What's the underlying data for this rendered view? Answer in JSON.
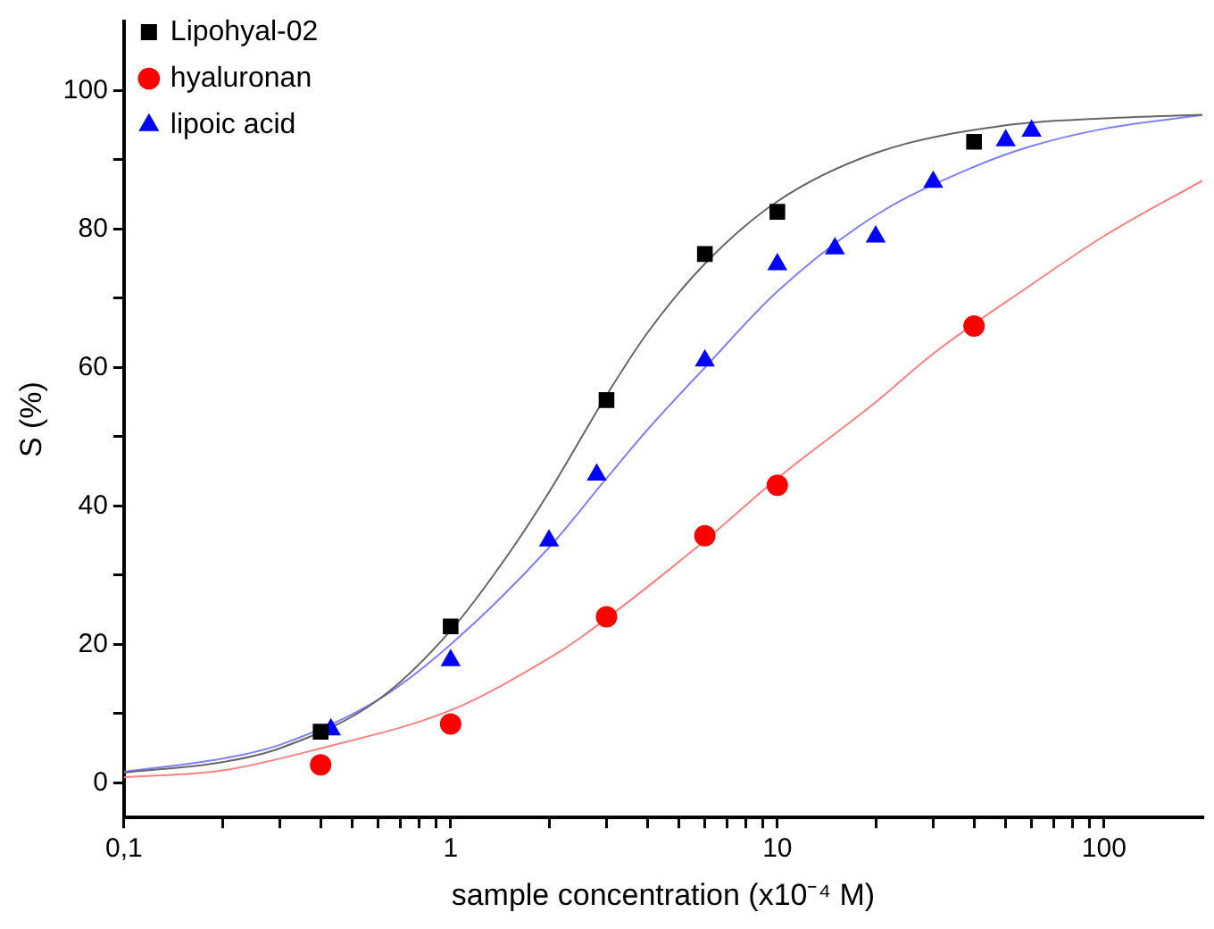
{
  "chart_data": {
    "type": "scatter",
    "xlabel": "sample concentration (x10⁻⁴ M)",
    "ylabel": "S (%)",
    "log": "x",
    "grid": false,
    "legend": "top left",
    "xlim": [
      0.1,
      200
    ],
    "ylim": [
      -5,
      110
    ],
    "xticks": [
      {
        "value": 0.1,
        "label": "0,1"
      },
      {
        "value": 0.2,
        "label": null
      },
      {
        "value": 0.3,
        "label": null
      },
      {
        "value": 0.4,
        "label": null
      },
      {
        "value": 0.5,
        "label": null
      },
      {
        "value": 0.6,
        "label": null
      },
      {
        "value": 0.7,
        "label": null
      },
      {
        "value": 0.8,
        "label": null
      },
      {
        "value": 0.9,
        "label": null
      },
      1,
      {
        "value": 2,
        "label": null
      },
      {
        "value": 3,
        "label": null
      },
      {
        "value": 4,
        "label": null
      },
      {
        "value": 5,
        "label": null
      },
      {
        "value": 6,
        "label": null
      },
      {
        "value": 7,
        "label": null
      },
      {
        "value": 8,
        "label": null
      },
      {
        "value": 9,
        "label": null
      },
      10,
      {
        "value": 20,
        "label": null
      },
      {
        "value": 30,
        "label": null
      },
      {
        "value": 40,
        "label": null
      },
      {
        "value": 50,
        "label": null
      },
      {
        "value": 60,
        "label": null
      },
      {
        "value": 70,
        "label": null
      },
      {
        "value": 80,
        "label": null
      },
      {
        "value": 90,
        "label": null
      },
      100
    ],
    "yticks": [
      0,
      {
        "value": 10,
        "label": null
      },
      20,
      {
        "value": 30,
        "label": null
      },
      40,
      {
        "value": 50,
        "label": null
      },
      60,
      {
        "value": 70,
        "label": null
      },
      80,
      {
        "value": 90,
        "label": null
      },
      100
    ],
    "series": [
      {
        "type": "line",
        "marker": "none",
        "color": "#666666",
        "x": [
          0.1,
          0.2,
          0.3,
          0.6,
          1,
          1.5,
          2,
          3,
          4,
          6,
          10,
          20,
          50,
          100,
          200
        ],
        "values": [
          1.5,
          3,
          5,
          12,
          22,
          33,
          42,
          56,
          65,
          75,
          84,
          91,
          95,
          96,
          96.5
        ]
      },
      {
        "type": "line",
        "marker": "none",
        "color": "#ff8080",
        "x": [
          0.1,
          0.2,
          0.4,
          1,
          2,
          2.5,
          6,
          10,
          20,
          30,
          60,
          100,
          200
        ],
        "values": [
          0.8,
          1.8,
          5,
          10.5,
          18,
          21,
          35,
          44,
          55,
          62,
          72,
          79,
          87
        ]
      },
      {
        "type": "line",
        "marker": "none",
        "color": "#8080ff",
        "x": [
          0.1,
          0.2,
          0.3,
          0.6,
          1,
          2,
          3,
          4,
          6,
          10,
          20,
          40,
          60,
          100,
          200
        ],
        "values": [
          1.6,
          3.5,
          5.5,
          12,
          20,
          34,
          44,
          51,
          60,
          71,
          82,
          89,
          92,
          94.5,
          96.5
        ]
      },
      {
        "name": "Lipohyal-02",
        "marker": "square",
        "color": "#000000",
        "x": [
          0.4,
          1,
          3,
          6,
          10,
          40
        ],
        "values": [
          7.4,
          22.6,
          55.3,
          76.4,
          82.5,
          92.6
        ]
      },
      {
        "name": "hyaluronan",
        "marker": "circle",
        "color": "#ff0000",
        "x": [
          0.4,
          1,
          3,
          6,
          10,
          40
        ],
        "values": [
          2.6,
          8.5,
          24,
          35.7,
          43,
          66
        ]
      },
      {
        "name": "lipoic acid",
        "marker": "triangle",
        "color": "#0000ff",
        "x": [
          0.43,
          1,
          2,
          2.8,
          6,
          10,
          15,
          20,
          30,
          50,
          60
        ],
        "values": [
          7.7,
          17.7,
          35,
          44.5,
          61,
          74.9,
          77.2,
          78.9,
          86.8,
          92.8,
          94.2
        ]
      }
    ]
  }
}
